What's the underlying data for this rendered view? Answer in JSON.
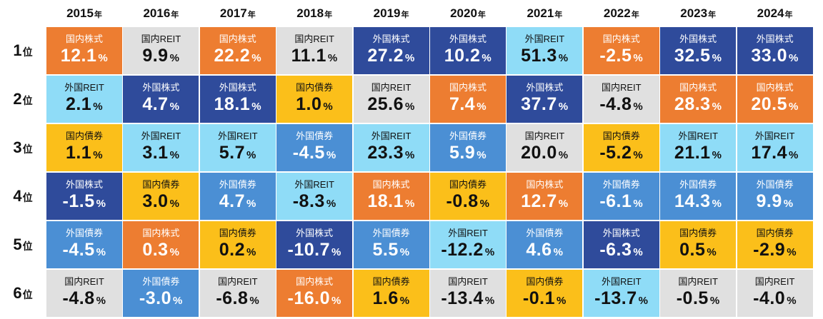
{
  "chart_data": {
    "type": "table",
    "title": "",
    "year_suffix": "年",
    "rank_suffix": "位",
    "percent_suffix": "%",
    "years": [
      "2015",
      "2016",
      "2017",
      "2018",
      "2019",
      "2020",
      "2021",
      "2022",
      "2023",
      "2024"
    ],
    "ranks": [
      "1",
      "2",
      "3",
      "4",
      "5",
      "6"
    ],
    "asset_colors": {
      "国内株式": "#ed7d31",
      "外国株式": "#2f4b9b",
      "国内REIT": "#e0e0e0",
      "外国REIT": "#8fdcf7",
      "国内債券": "#fbbf1a",
      "外国債券": "#4b8fd4"
    },
    "dark_text_assets": [
      "国内REIT",
      "外国REIT",
      "国内債券"
    ],
    "columns": [
      {
        "year": "2015",
        "cells": [
          {
            "asset": "国内株式",
            "value": "12.1"
          },
          {
            "asset": "外国REIT",
            "value": "2.1"
          },
          {
            "asset": "国内債券",
            "value": "1.1"
          },
          {
            "asset": "外国株式",
            "value": "-1.5"
          },
          {
            "asset": "外国債券",
            "value": "-4.5"
          },
          {
            "asset": "国内REIT",
            "value": "-4.8"
          }
        ]
      },
      {
        "year": "2016",
        "cells": [
          {
            "asset": "国内REIT",
            "value": "9.9"
          },
          {
            "asset": "外国株式",
            "value": "4.7"
          },
          {
            "asset": "外国REIT",
            "value": "3.1"
          },
          {
            "asset": "国内債券",
            "value": "3.0"
          },
          {
            "asset": "国内株式",
            "value": "0.3"
          },
          {
            "asset": "外国債券",
            "value": "-3.0"
          }
        ]
      },
      {
        "year": "2017",
        "cells": [
          {
            "asset": "国内株式",
            "value": "22.2"
          },
          {
            "asset": "外国株式",
            "value": "18.1"
          },
          {
            "asset": "外国REIT",
            "value": "5.7"
          },
          {
            "asset": "外国債券",
            "value": "4.7"
          },
          {
            "asset": "国内債券",
            "value": "0.2"
          },
          {
            "asset": "国内REIT",
            "value": "-6.8"
          }
        ]
      },
      {
        "year": "2018",
        "cells": [
          {
            "asset": "国内REIT",
            "value": "11.1"
          },
          {
            "asset": "国内債券",
            "value": "1.0"
          },
          {
            "asset": "外国債券",
            "value": "-4.5"
          },
          {
            "asset": "外国REIT",
            "value": "-8.3"
          },
          {
            "asset": "外国株式",
            "value": "-10.7"
          },
          {
            "asset": "国内株式",
            "value": "-16.0"
          }
        ]
      },
      {
        "year": "2019",
        "cells": [
          {
            "asset": "外国株式",
            "value": "27.2"
          },
          {
            "asset": "国内REIT",
            "value": "25.6"
          },
          {
            "asset": "外国REIT",
            "value": "23.3"
          },
          {
            "asset": "国内株式",
            "value": "18.1"
          },
          {
            "asset": "外国債券",
            "value": "5.5"
          },
          {
            "asset": "国内債券",
            "value": "1.6"
          }
        ]
      },
      {
        "year": "2020",
        "cells": [
          {
            "asset": "外国株式",
            "value": "10.2"
          },
          {
            "asset": "国内株式",
            "value": "7.4"
          },
          {
            "asset": "外国債券",
            "value": "5.9"
          },
          {
            "asset": "国内債券",
            "value": "-0.8"
          },
          {
            "asset": "外国REIT",
            "value": "-12.2"
          },
          {
            "asset": "国内REIT",
            "value": "-13.4"
          }
        ]
      },
      {
        "year": "2021",
        "cells": [
          {
            "asset": "外国REIT",
            "value": "51.3"
          },
          {
            "asset": "外国株式",
            "value": "37.7"
          },
          {
            "asset": "国内REIT",
            "value": "20.0"
          },
          {
            "asset": "国内株式",
            "value": "12.7"
          },
          {
            "asset": "外国債券",
            "value": "4.6"
          },
          {
            "asset": "国内債券",
            "value": "-0.1"
          }
        ]
      },
      {
        "year": "2022",
        "cells": [
          {
            "asset": "国内株式",
            "value": "-2.5"
          },
          {
            "asset": "国内REIT",
            "value": "-4.8"
          },
          {
            "asset": "国内債券",
            "value": "-5.2"
          },
          {
            "asset": "外国債券",
            "value": "-6.1"
          },
          {
            "asset": "外国株式",
            "value": "-6.3"
          },
          {
            "asset": "外国REIT",
            "value": "-13.7"
          }
        ]
      },
      {
        "year": "2023",
        "cells": [
          {
            "asset": "外国株式",
            "value": "32.5"
          },
          {
            "asset": "国内株式",
            "value": "28.3"
          },
          {
            "asset": "外国REIT",
            "value": "21.1"
          },
          {
            "asset": "外国債券",
            "value": "14.3"
          },
          {
            "asset": "国内債券",
            "value": "0.5"
          },
          {
            "asset": "国内REIT",
            "value": "-0.5"
          }
        ]
      },
      {
        "year": "2024",
        "cells": [
          {
            "asset": "外国株式",
            "value": "33.0"
          },
          {
            "asset": "国内株式",
            "value": "20.5"
          },
          {
            "asset": "外国REIT",
            "value": "17.4"
          },
          {
            "asset": "外国債券",
            "value": "9.9"
          },
          {
            "asset": "国内債券",
            "value": "-2.9"
          },
          {
            "asset": "国内REIT",
            "value": "-4.0"
          }
        ]
      }
    ]
  }
}
